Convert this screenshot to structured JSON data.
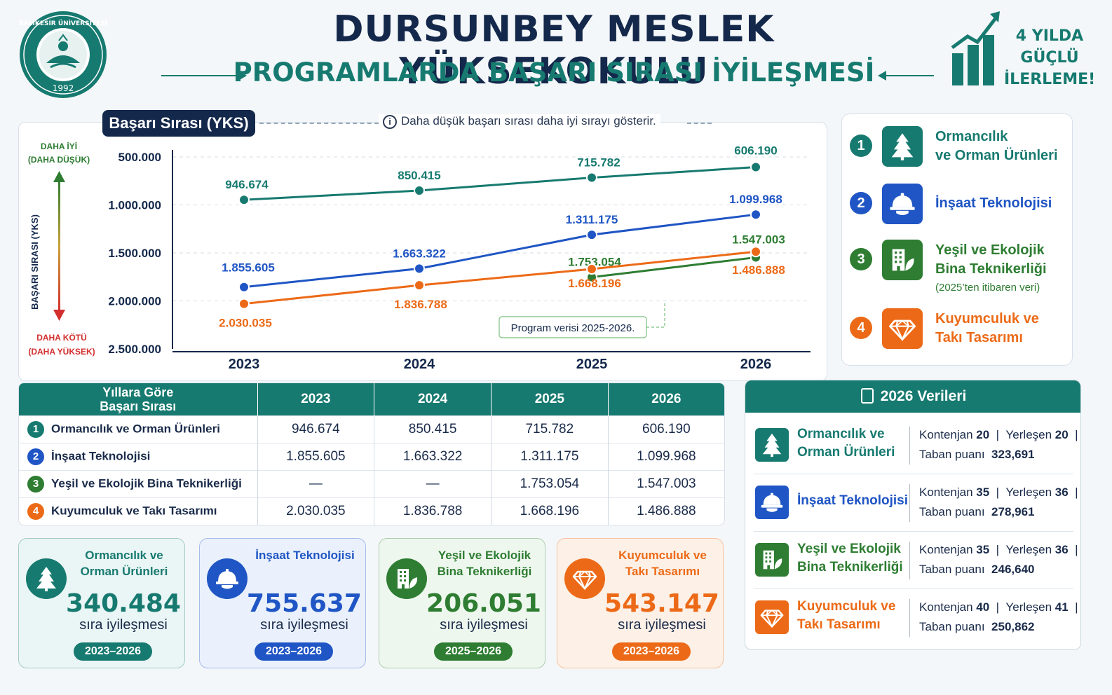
{
  "header": {
    "title": "DURSUNBEY MESLEK YÜKSEKOKULU",
    "subtitle": "PROGRAMLARDA BAŞARI SIRASI İYİLEŞMESİ",
    "logo_text_top": "BALIKESİR ÜNİVERSİTESİ",
    "logo_year": "1992",
    "growth_text": [
      "4 YILDA",
      "GÜÇLÜ",
      "İLERLEME!"
    ]
  },
  "colors": {
    "teal": "#177a70",
    "blue": "#1f55c4",
    "green": "#2e7d32",
    "orange": "#ec6a17",
    "navy": "#14284b"
  },
  "chart_data": {
    "type": "line",
    "title": "Başarı Sırası (YKS)",
    "note": "Daha düşük başarı sırası daha iyi sırayı gösterir.",
    "ylabel": "BAŞARI SIRASI (YKS)",
    "y_top_label": [
      "DAHA İYİ",
      "(DAHA DÜŞÜK)"
    ],
    "y_bottom_label": [
      "DAHA KÖTÜ",
      "(DAHA YÜKSEK)"
    ],
    "y_inverted": true,
    "ylim": [
      500000,
      2500000
    ],
    "yticks": [
      "500.000",
      "1.000.000",
      "1.500.000",
      "2.000.000",
      "2.500.000"
    ],
    "ytick_values": [
      500000,
      1000000,
      1500000,
      2000000,
      2500000
    ],
    "categories": [
      "2023",
      "2024",
      "2025",
      "2026"
    ],
    "callout": "Program verisi 2025-2026.",
    "series": [
      {
        "name": "Ormancılık ve Orman Ürünleri",
        "color": "#177a70",
        "values": [
          946674,
          850415,
          715782,
          606190
        ],
        "labels": [
          "946.674",
          "850.415",
          "715.782",
          "606.190"
        ]
      },
      {
        "name": "İnşaat Teknolojisi",
        "color": "#1f55c4",
        "values": [
          1855605,
          1663322,
          1311175,
          1099968
        ],
        "labels": [
          "1.855.605",
          "1.663.322",
          "1.311.175",
          "1.099.968"
        ]
      },
      {
        "name": "Yeşil ve Ekolojik Bina Teknikerliği",
        "color": "#2e7d32",
        "values": [
          null,
          null,
          1753054,
          1547003
        ],
        "labels": [
          "",
          "",
          "1.753.054",
          "1.547.003"
        ]
      },
      {
        "name": "Kuyumculuk ve Takı Tasarımı",
        "color": "#ec6a17",
        "values": [
          2030035,
          1836788,
          1668196,
          1486888
        ],
        "labels": [
          "2.030.035",
          "1.836.788",
          "1.668.196",
          "1.486.888"
        ]
      }
    ]
  },
  "legend": [
    {
      "num": "1",
      "lines": [
        "Ormancılık",
        "ve Orman Ürünleri"
      ],
      "icon": "tree-icon",
      "sub": ""
    },
    {
      "num": "2",
      "lines": [
        "İnşaat Teknolojisi"
      ],
      "icon": "hardhat-icon",
      "sub": ""
    },
    {
      "num": "3",
      "lines": [
        "Yeşil ve Ekolojik",
        "Bina Teknikerliği"
      ],
      "icon": "green-building-icon",
      "sub": "(2025’ten itibaren veri)"
    },
    {
      "num": "4",
      "lines": [
        "Kuyumculuk ve",
        "Takı Tasarımı"
      ],
      "icon": "diamond-icon",
      "sub": ""
    }
  ],
  "table": {
    "header_first": [
      "Yıllara Göre",
      "Başarı Sırası"
    ],
    "years": [
      "2023",
      "2024",
      "2025",
      "2026"
    ],
    "rows": [
      {
        "num": "1",
        "name": "Ormancılık ve Orman Ürünleri",
        "cells": [
          "946.674",
          "850.415",
          "715.782",
          "606.190"
        ]
      },
      {
        "num": "2",
        "name": "İnşaat Teknolojisi",
        "cells": [
          "1.855.605",
          "1.663.322",
          "1.311.175",
          "1.099.968"
        ]
      },
      {
        "num": "3",
        "name": "Yeşil ve Ekolojik Bina Teknikerliği",
        "cells": [
          "—",
          "—",
          "1.753.054",
          "1.547.003"
        ]
      },
      {
        "num": "4",
        "name": "Kuyumculuk ve Takı Tasarımı",
        "cells": [
          "2.030.035",
          "1.836.788",
          "1.668.196",
          "1.486.888"
        ]
      }
    ]
  },
  "cards": [
    {
      "title": [
        "Ormancılık ve",
        "Orman Ürünleri"
      ],
      "value": "340.484",
      "label": "sıra iyileşmesi",
      "years": "2023–2026",
      "icon": "tree-icon"
    },
    {
      "title": [
        "İnşaat Teknolojisi",
        ""
      ],
      "value": "755.637",
      "label": "sıra iyileşmesi",
      "years": "2023–2026",
      "icon": "hardhat-icon"
    },
    {
      "title": [
        "Yeşil ve Ekolojik",
        "Bina Teknikerliği"
      ],
      "value": "206.051",
      "label": "sıra iyileşmesi",
      "years": "2025–2026",
      "icon": "green-building-icon"
    },
    {
      "title": [
        "Kuyumculuk ve",
        "Takı Tasarımı"
      ],
      "value": "543.147",
      "label": "sıra iyileşmesi",
      "years": "2023–2026",
      "icon": "diamond-icon"
    }
  ],
  "data2026": {
    "title": "2026 Verileri",
    "labels": {
      "kontenjan": "Kontenjan",
      "yerlesen": "Yerleşen",
      "taban": "Taban puanı"
    },
    "rows": [
      {
        "name": [
          "Ormancılık ve",
          "Orman Ürünleri"
        ],
        "kontenjan": "20",
        "yerlesen": "20",
        "taban": "323,691"
      },
      {
        "name": [
          "İnşaat Teknolojisi",
          ""
        ],
        "kontenjan": "35",
        "yerlesen": "36",
        "taban": "278,961"
      },
      {
        "name": [
          "Yeşil ve Ekolojik",
          "Bina Teknikerliği"
        ],
        "kontenjan": "35",
        "yerlesen": "36",
        "taban": "246,640"
      },
      {
        "name": [
          "Kuyumculuk ve",
          "Takı Tasarımı"
        ],
        "kontenjan": "40",
        "yerlesen": "41",
        "taban": "250,862"
      }
    ]
  }
}
